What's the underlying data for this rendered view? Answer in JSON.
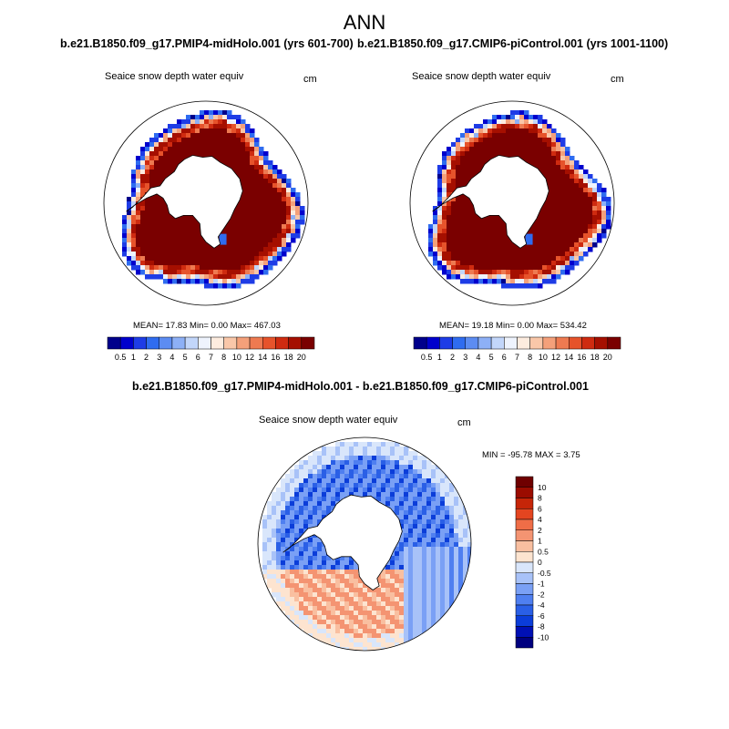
{
  "page": {
    "title": "ANN"
  },
  "colors": {
    "abs_scale": [
      "#00008b",
      "#0000cd",
      "#1e3ce6",
      "#2f6cf0",
      "#5c8cf2",
      "#8db0f6",
      "#c2d6fa",
      "#eef3fd",
      "#fdecdf",
      "#f9c7a9",
      "#f4a07a",
      "#ee7a51",
      "#e6532b",
      "#cf2b10",
      "#a50f00",
      "#7a0000"
    ],
    "diff_scale": [
      "#00007f",
      "#0010b5",
      "#0b3dd9",
      "#2a5fe6",
      "#4f7ff0",
      "#7aa0f5",
      "#a8c2f8",
      "#d9e6fb",
      "#fde4d0",
      "#f9bfa0",
      "#f49472",
      "#ef6d47",
      "#e44520",
      "#c62508",
      "#9b0c00",
      "#6f0000"
    ],
    "land": "#ffffff",
    "outline": "#000000"
  },
  "chart_data": [
    {
      "type": "heatmap",
      "panel": "top-left",
      "title": "b.e21.B1850.f09_g17.PMIP4-midHolo.001 (yrs 601-700)",
      "subtitle": "Seaice snow depth water equiv",
      "units": "cm",
      "stats": "MEAN=  17.83  Min=    0.00  Max= 467.03",
      "colorbar_levels": [
        "0.5",
        "1",
        "2",
        "3",
        "4",
        "5",
        "6",
        "7",
        "8",
        "10",
        "12",
        "14",
        "16",
        "18",
        "20"
      ]
    },
    {
      "type": "heatmap",
      "panel": "top-right",
      "title": "b.e21.B1850.f09_g17.CMIP6-piControl.001 (yrs 1001-1100)",
      "subtitle": "Seaice snow depth water equiv",
      "units": "cm",
      "stats": "MEAN=  19.18  Min=    0.00  Max= 534.42",
      "colorbar_levels": [
        "0.5",
        "1",
        "2",
        "3",
        "4",
        "5",
        "6",
        "7",
        "8",
        "10",
        "12",
        "14",
        "16",
        "18",
        "20"
      ]
    },
    {
      "type": "heatmap",
      "panel": "bottom",
      "title": "b.e21.B1850.f09_g17.PMIP4-midHolo.001 - b.e21.B1850.f09_g17.CMIP6-piControl.001",
      "subtitle": "Seaice snow depth water equiv",
      "units": "cm",
      "stats": "MIN = -95.78 MAX =   3.75",
      "colorbar_levels": [
        "10",
        "8",
        "6",
        "4",
        "2",
        "1",
        "0.5",
        "0",
        "-0.5",
        "-1",
        "-2",
        "-4",
        "-6",
        "-8",
        "-10"
      ]
    }
  ]
}
